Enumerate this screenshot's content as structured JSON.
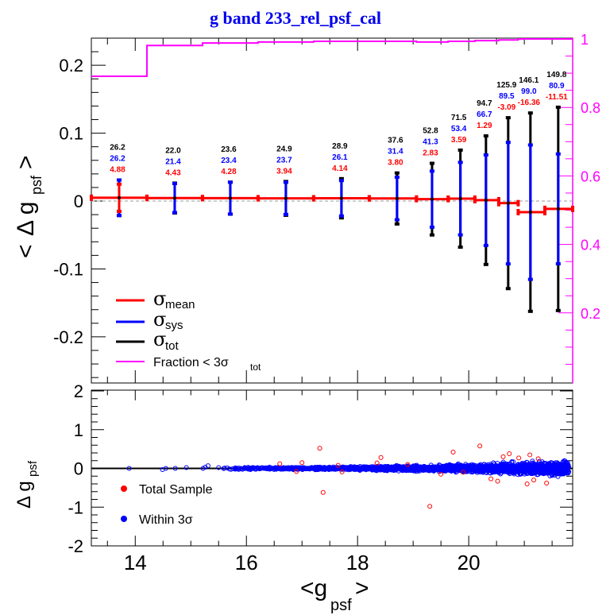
{
  "chart_data": [
    {
      "panel": "top",
      "type": "line",
      "title": "g band 233_rel_psf_cal",
      "xlabel": "<g_psf>",
      "ylabel": "< Δ g_psf >",
      "ylabel_right": "Fraction < 3σ_tot",
      "xlim": [
        13.21,
        21.87
      ],
      "ylim": [
        -0.268,
        0.24
      ],
      "ylim_right": [
        0,
        1
      ],
      "yticks": [
        -0.2,
        -0.1,
        0,
        0.1,
        0.2
      ],
      "ytick_labels": [
        "-0.2",
        "-0.1",
        "0",
        "0.1",
        "0.2"
      ],
      "yticks_right": [
        0.2,
        0.4,
        0.6,
        0.8,
        1
      ],
      "ytick_labels_right": [
        "0.2",
        "0.4",
        "0.6",
        "0.8",
        "1"
      ],
      "grid": false,
      "reference_line": 0,
      "bin_edges": [
        13.21,
        14.21,
        15.21,
        16.21,
        17.21,
        18.21,
        19.06,
        19.63,
        20.11,
        20.54,
        20.89,
        21.37,
        21.87
      ],
      "bin_centers": [
        13.71,
        14.71,
        15.71,
        16.71,
        17.71,
        18.71,
        19.34,
        19.85,
        20.31,
        20.71,
        21.11,
        21.61
      ],
      "series": [
        {
          "name": "mean (mmag)",
          "color": "#ff0000",
          "values": [
            4.88,
            4.43,
            4.28,
            3.94,
            4.14,
            3.8,
            2.83,
            3.59,
            1.29,
            -3.09,
            -16.36,
            -11.51
          ]
        },
        {
          "name": "σ_mean (mmag)",
          "color": "#ff0000",
          "values": [
            20,
            2,
            2,
            2,
            2,
            2,
            2,
            2,
            2,
            2,
            2,
            2
          ]
        },
        {
          "name": "σ_sys (mmag)",
          "color": "#0000ff",
          "values": [
            26.2,
            21.4,
            23.4,
            23.7,
            26.1,
            31.4,
            41.3,
            53.4,
            66.7,
            89.5,
            99.0,
            80.9
          ]
        },
        {
          "name": "σ_tot (mmag)",
          "color": "#000000",
          "values": [
            26.2,
            22.0,
            23.6,
            24.9,
            28.9,
            37.6,
            52.8,
            71.5,
            94.7,
            125.9,
            146.1,
            149.8
          ]
        },
        {
          "name": "Fraction < 3σ_tot",
          "color": "#ff00ff",
          "axis": "right",
          "values": [
            0.891,
            0.981,
            0.988,
            0.991,
            0.993,
            0.993,
            0.991,
            0.993,
            0.995,
            0.997,
            1.0,
            1.0
          ]
        }
      ],
      "annotations": {
        "tot": [
          "26.2",
          "22.0",
          "23.6",
          "24.9",
          "28.9",
          "37.6",
          "52.8",
          "71.5",
          "94.7",
          "125.9",
          "146.1",
          "149.8"
        ],
        "sys": [
          "26.2",
          "21.4",
          "23.4",
          "23.7",
          "26.1",
          "31.4",
          "41.3",
          "53.4",
          "66.7",
          "89.5",
          "99.0",
          "80.9"
        ],
        "mean": [
          "4.88",
          "4.43",
          "4.28",
          "3.94",
          "4.14",
          "3.80",
          "2.83",
          "3.59",
          "1.29",
          "-3.09",
          "-16.36",
          "-11.51"
        ]
      },
      "legend": {
        "position": "bottom-left",
        "entries": [
          {
            "symbol": "σ",
            "sub": "mean",
            "color": "#ff0000"
          },
          {
            "symbol": "σ",
            "sub": "sys",
            "color": "#0000ff"
          },
          {
            "symbol": "σ",
            "sub": "tot",
            "color": "#000000"
          },
          {
            "label": "Fraction < 3σ",
            "sub": "tot",
            "color": "#ff00ff"
          }
        ]
      }
    },
    {
      "panel": "bottom",
      "type": "scatter",
      "xlabel": "<g_psf>",
      "ylabel": "Δ g_psf",
      "xlim": [
        13.21,
        21.87
      ],
      "ylim": [
        -2,
        2
      ],
      "xticks": [
        14,
        16,
        18,
        20
      ],
      "xtick_labels": [
        "14",
        "16",
        "18",
        "20"
      ],
      "yticks": [
        -2,
        -1,
        0,
        1,
        2
      ],
      "ytick_labels": [
        "-2",
        "-1",
        "0",
        "1",
        "2"
      ],
      "reference_line": 0,
      "legend": {
        "position": "bottom-left",
        "entries": [
          {
            "label": "Total Sample",
            "color": "#ff0000"
          },
          {
            "label": "Within 3σ",
            "color": "#0000ff"
          }
        ]
      },
      "outliers_red": [
        [
          17.32,
          0.52
        ],
        [
          17.38,
          -0.62
        ],
        [
          17.65,
          0.08
        ],
        [
          17.72,
          -0.09
        ],
        [
          18.35,
          0.14
        ],
        [
          18.42,
          0.28
        ],
        [
          19.3,
          -0.98
        ],
        [
          19.72,
          0.42
        ],
        [
          20.2,
          0.58
        ],
        [
          20.4,
          -0.27
        ],
        [
          20.52,
          -0.33
        ],
        [
          20.62,
          0.3
        ],
        [
          20.73,
          0.38
        ],
        [
          21.1,
          0.35
        ],
        [
          21.17,
          -0.3
        ],
        [
          21.25,
          0.25
        ],
        [
          21.4,
          -0.38
        ],
        [
          21.05,
          -0.4
        ],
        [
          20.9,
          0.27
        ],
        [
          19.9,
          -0.1
        ],
        [
          16.6,
          0.12
        ],
        [
          16.9,
          -0.08
        ],
        [
          17.0,
          0.15
        ],
        [
          18.9,
          0.1
        ],
        [
          19.5,
          -0.15
        ]
      ],
      "sparse_blue": [
        [
          13.89,
          0.0
        ],
        [
          14.49,
          -0.03
        ],
        [
          14.55,
          0.0
        ],
        [
          14.72,
          0.0
        ],
        [
          14.92,
          0.02
        ],
        [
          15.22,
          0.0
        ],
        [
          15.26,
          0.03
        ],
        [
          15.31,
          0.07
        ],
        [
          15.5,
          0.02
        ]
      ],
      "blue_band": {
        "x_start": 15.55,
        "x_end": 21.8,
        "spread_start": 0.05,
        "spread_end": 0.35
      }
    }
  ]
}
